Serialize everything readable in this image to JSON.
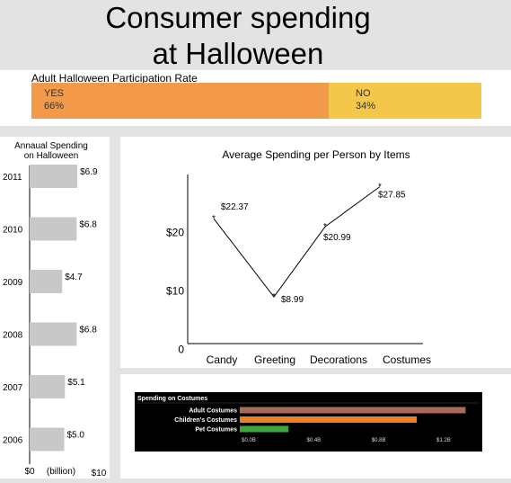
{
  "title_line1": "Consumer spending",
  "title_line2": "at Halloween",
  "colors": {
    "yes": "#f29a49",
    "no": "#f2c74a",
    "bar_gray": "#c8c8c8",
    "adult": "#a86a5a",
    "children": "#f07f22",
    "pet": "#41a43b"
  },
  "chart_data": [
    {
      "type": "bar",
      "title": "Adult Halloween Participation Rate",
      "categories": [
        "YES",
        "NO"
      ],
      "values": [
        66,
        34
      ],
      "labels": [
        "66%",
        "34%"
      ]
    },
    {
      "type": "bar",
      "title_line1": "Annaual Spending",
      "title_line2": "on Halloween",
      "categories": [
        "2011",
        "2010",
        "2009",
        "2008",
        "2007",
        "2006"
      ],
      "values": [
        6.9,
        6.8,
        4.7,
        6.8,
        5.1,
        5.0
      ],
      "value_labels": [
        "$6.9",
        "$6.8",
        "$4.7",
        "$6.8",
        "$5.1",
        "$5.0"
      ],
      "xlim": [
        0,
        10
      ],
      "x_min_label": "$0",
      "x_max_label": "$10",
      "xlabel": "(billion)"
    },
    {
      "type": "line",
      "title": "Average Spending per Person by Items",
      "categories": [
        "Candy",
        "Greeting",
        "Decorations",
        "Costumes"
      ],
      "values": [
        22.37,
        8.99,
        20.99,
        27.85
      ],
      "value_labels": [
        "$22.37",
        "$8.99",
        "$20.99",
        "$27.85"
      ],
      "y_ticks": [
        {
          "value": 0,
          "label": "0"
        },
        {
          "value": 10,
          "label": "$10"
        },
        {
          "value": 20,
          "label": "$20"
        }
      ],
      "ylim": [
        0,
        30
      ]
    },
    {
      "type": "bar",
      "title": "Spending on Costumes",
      "categories": [
        "Adult Costumes",
        "Children's Costumes",
        "Pet Costumes"
      ],
      "values": [
        1.39,
        1.09,
        0.3
      ],
      "x_ticks": [
        {
          "value": 0,
          "label": "$0.0B"
        },
        {
          "value": 0.4,
          "label": "$0.4B"
        },
        {
          "value": 0.8,
          "label": "$0.8B"
        },
        {
          "value": 1.2,
          "label": "$1.2B"
        }
      ],
      "xlim": [
        0,
        1.4
      ]
    }
  ]
}
